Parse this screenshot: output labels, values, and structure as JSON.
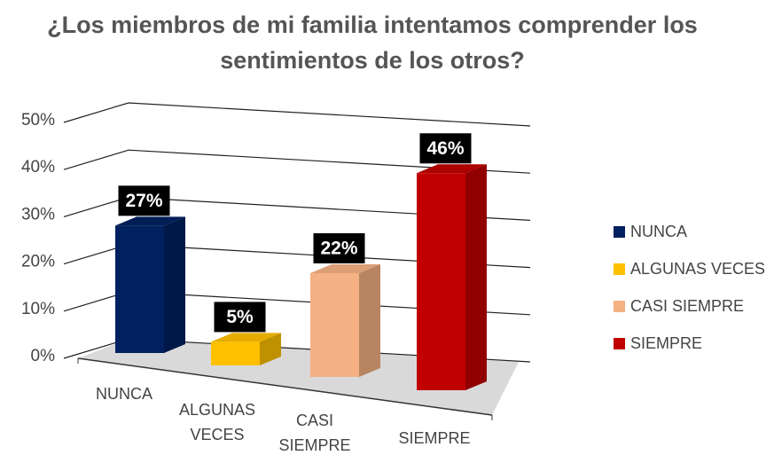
{
  "chart_data": {
    "type": "bar3d",
    "title": "¿Los miembros de mi familia intentamos comprender los sentimientos de los otros?",
    "categories": [
      "NUNCA",
      "ALGUNAS VECES",
      "CASI SIEMPRE",
      "SIEMPRE"
    ],
    "values": [
      27,
      5,
      22,
      46
    ],
    "value_labels": [
      "27%",
      "5%",
      "22%",
      "46%"
    ],
    "colors": [
      "#002060",
      "#ffc000",
      "#f4b183",
      "#c00000"
    ],
    "ylim": [
      0,
      50
    ],
    "yticks": [
      {
        "value": 0,
        "label": "0%"
      },
      {
        "value": 10,
        "label": "10%"
      },
      {
        "value": 20,
        "label": "20%"
      },
      {
        "value": 30,
        "label": "30%"
      },
      {
        "value": 40,
        "label": "40%"
      },
      {
        "value": 50,
        "label": "50%"
      }
    ],
    "grid": true,
    "legend": "right"
  }
}
